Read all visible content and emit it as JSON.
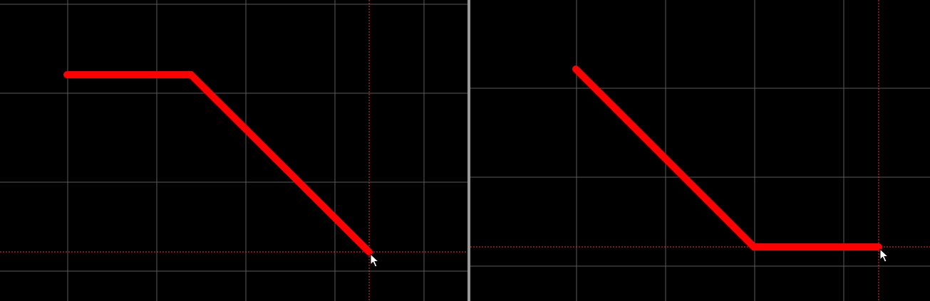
{
  "colors": {
    "background": "#000000",
    "grid": "#5a5a5a",
    "trace": "#ff0000",
    "crosshair": "#ff2a2a",
    "divider": "#9a9a9a",
    "cursor_fill": "#ffffff",
    "cursor_stroke": "#000000"
  },
  "panels": [
    {
      "name": "left-canvas",
      "trace_shape": "horizontal-then-diagonal",
      "cursor_icon": "arrow-pointer-icon"
    },
    {
      "name": "right-canvas",
      "trace_shape": "diagonal-then-horizontal",
      "cursor_icon": "arrow-pointer-icon"
    }
  ]
}
